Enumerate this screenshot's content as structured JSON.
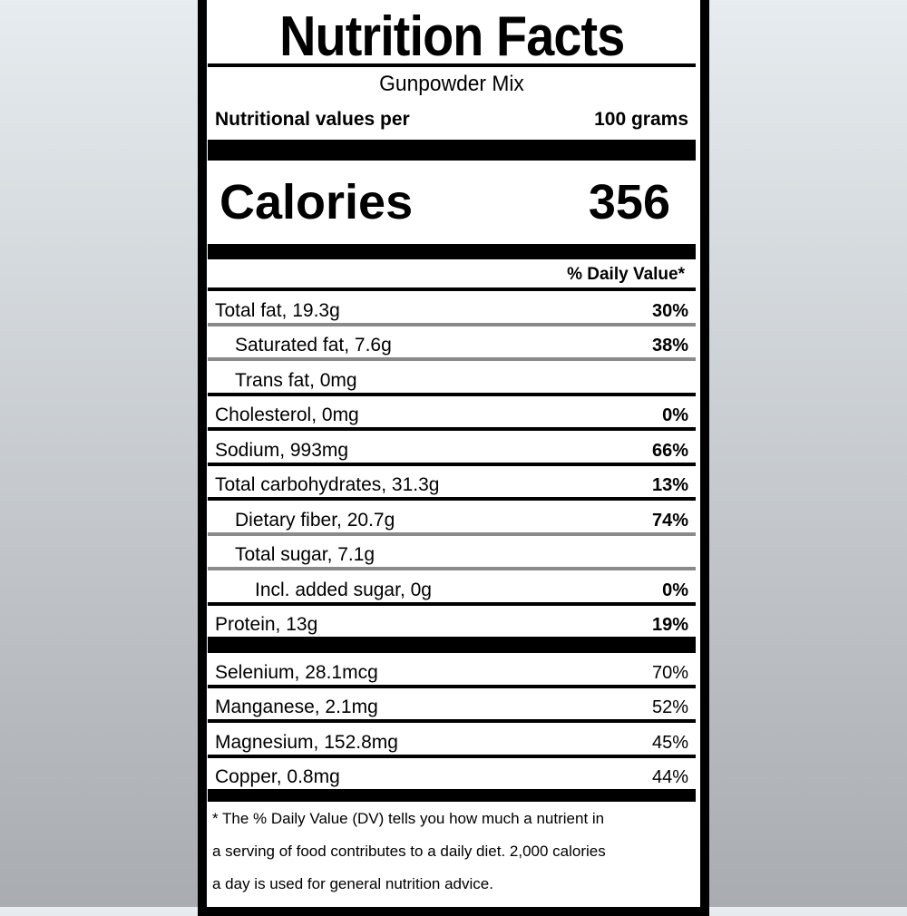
{
  "title": "Nutrition Facts",
  "product": "Gunpowder Mix",
  "serving": {
    "label": "Nutritional values per",
    "amount": "100 grams"
  },
  "calories": {
    "label": "Calories",
    "value": "356"
  },
  "daily_value_header": "% Daily Value*",
  "nutrients": [
    {
      "name": "Total fat, 19.3g",
      "dv": "30%"
    },
    {
      "name": "Saturated fat, 7.6g",
      "dv": "38%"
    },
    {
      "name": "Trans fat, 0mg",
      "dv": ""
    },
    {
      "name": "Cholesterol, 0mg",
      "dv": "0%"
    },
    {
      "name": "Sodium, 993mg",
      "dv": "66%"
    },
    {
      "name": "Total carbohydrates, 31.3g",
      "dv": "13%"
    },
    {
      "name": "Dietary fiber, 20.7g",
      "dv": "74%"
    },
    {
      "name": "Total sugar, 7.1g",
      "dv": ""
    },
    {
      "name": "Incl. added sugar, 0g",
      "dv": "0%"
    },
    {
      "name": "Protein, 13g",
      "dv": "19%"
    }
  ],
  "minerals": [
    {
      "name": "Selenium, 28.1mcg",
      "dv": "70%"
    },
    {
      "name": "Manganese, 2.1mg",
      "dv": "52%"
    },
    {
      "name": "Magnesium, 152.8mg",
      "dv": "45%"
    },
    {
      "name": "Copper, 0.8mg",
      "dv": "44%"
    }
  ],
  "footnote": [
    "* The % Daily Value (DV) tells you how much a nutrient in",
    "a serving of food contributes to a daily diet. 2,000 calories",
    "a day is used for general nutrition advice."
  ]
}
